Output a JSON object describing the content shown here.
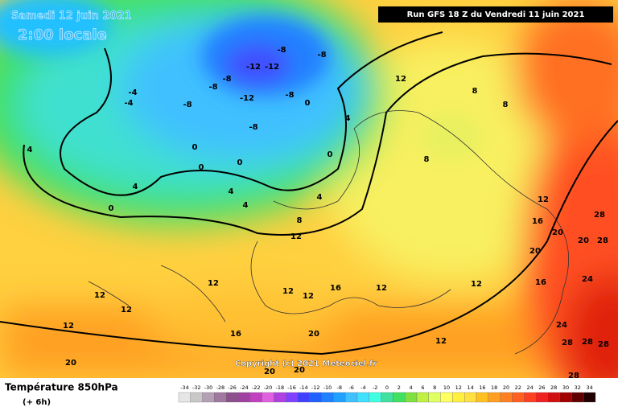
{
  "header": {
    "date": "Samedi 12 juin 2021",
    "time": "2:00 locale",
    "run": "Run GFS 18 Z du Vendredi 11 juin 2021"
  },
  "copyright": "Copyright (c) 2021 Meteociel.fr",
  "footer": {
    "title": "Température 850hPa",
    "step": "(+ 6h)"
  },
  "scale": {
    "labels": [
      -34,
      -32,
      -30,
      -28,
      -26,
      -24,
      -22,
      -20,
      -18,
      -16,
      -14,
      -12,
      -10,
      -8,
      -6,
      -4,
      -2,
      0,
      2,
      4,
      6,
      8,
      10,
      12,
      14,
      16,
      18,
      20,
      22,
      24,
      26,
      28,
      30,
      32,
      34
    ],
    "colors": [
      "#e6e6e6",
      "#c8c8c8",
      "#b4a0b4",
      "#a078a0",
      "#8c508c",
      "#a040a0",
      "#c040c0",
      "#e060e0",
      "#b040e0",
      "#8040ff",
      "#4040ff",
      "#2060ff",
      "#2080ff",
      "#20a0ff",
      "#40c0ff",
      "#40e0ff",
      "#40ffe0",
      "#40e0a0",
      "#40e060",
      "#80e040",
      "#c0f040",
      "#e0ff60",
      "#ffff60",
      "#fff040",
      "#ffe040",
      "#ffc020",
      "#ffa020",
      "#ff8020",
      "#ff6020",
      "#ff4020",
      "#f02020",
      "#d01010",
      "#a00000",
      "#600000",
      "#200000"
    ]
  },
  "map_labels": [
    "-4",
    "-4",
    "-8",
    "-8",
    "-8",
    "-8",
    "-8",
    "-8",
    "-8",
    "-12",
    "-12",
    "-12",
    "4",
    "4",
    "4",
    "4",
    "4",
    "4",
    "0",
    "0",
    "0",
    "0",
    "0",
    "0",
    "8",
    "8",
    "8",
    "8",
    "12",
    "12",
    "12",
    "12",
    "12",
    "12",
    "12",
    "12",
    "12",
    "12",
    "12",
    "12",
    "16",
    "16",
    "16",
    "16",
    "20",
    "20",
    "20",
    "20",
    "20",
    "20",
    "20",
    "24",
    "24",
    "28",
    "28",
    "28",
    "28",
    "28",
    "28"
  ]
}
